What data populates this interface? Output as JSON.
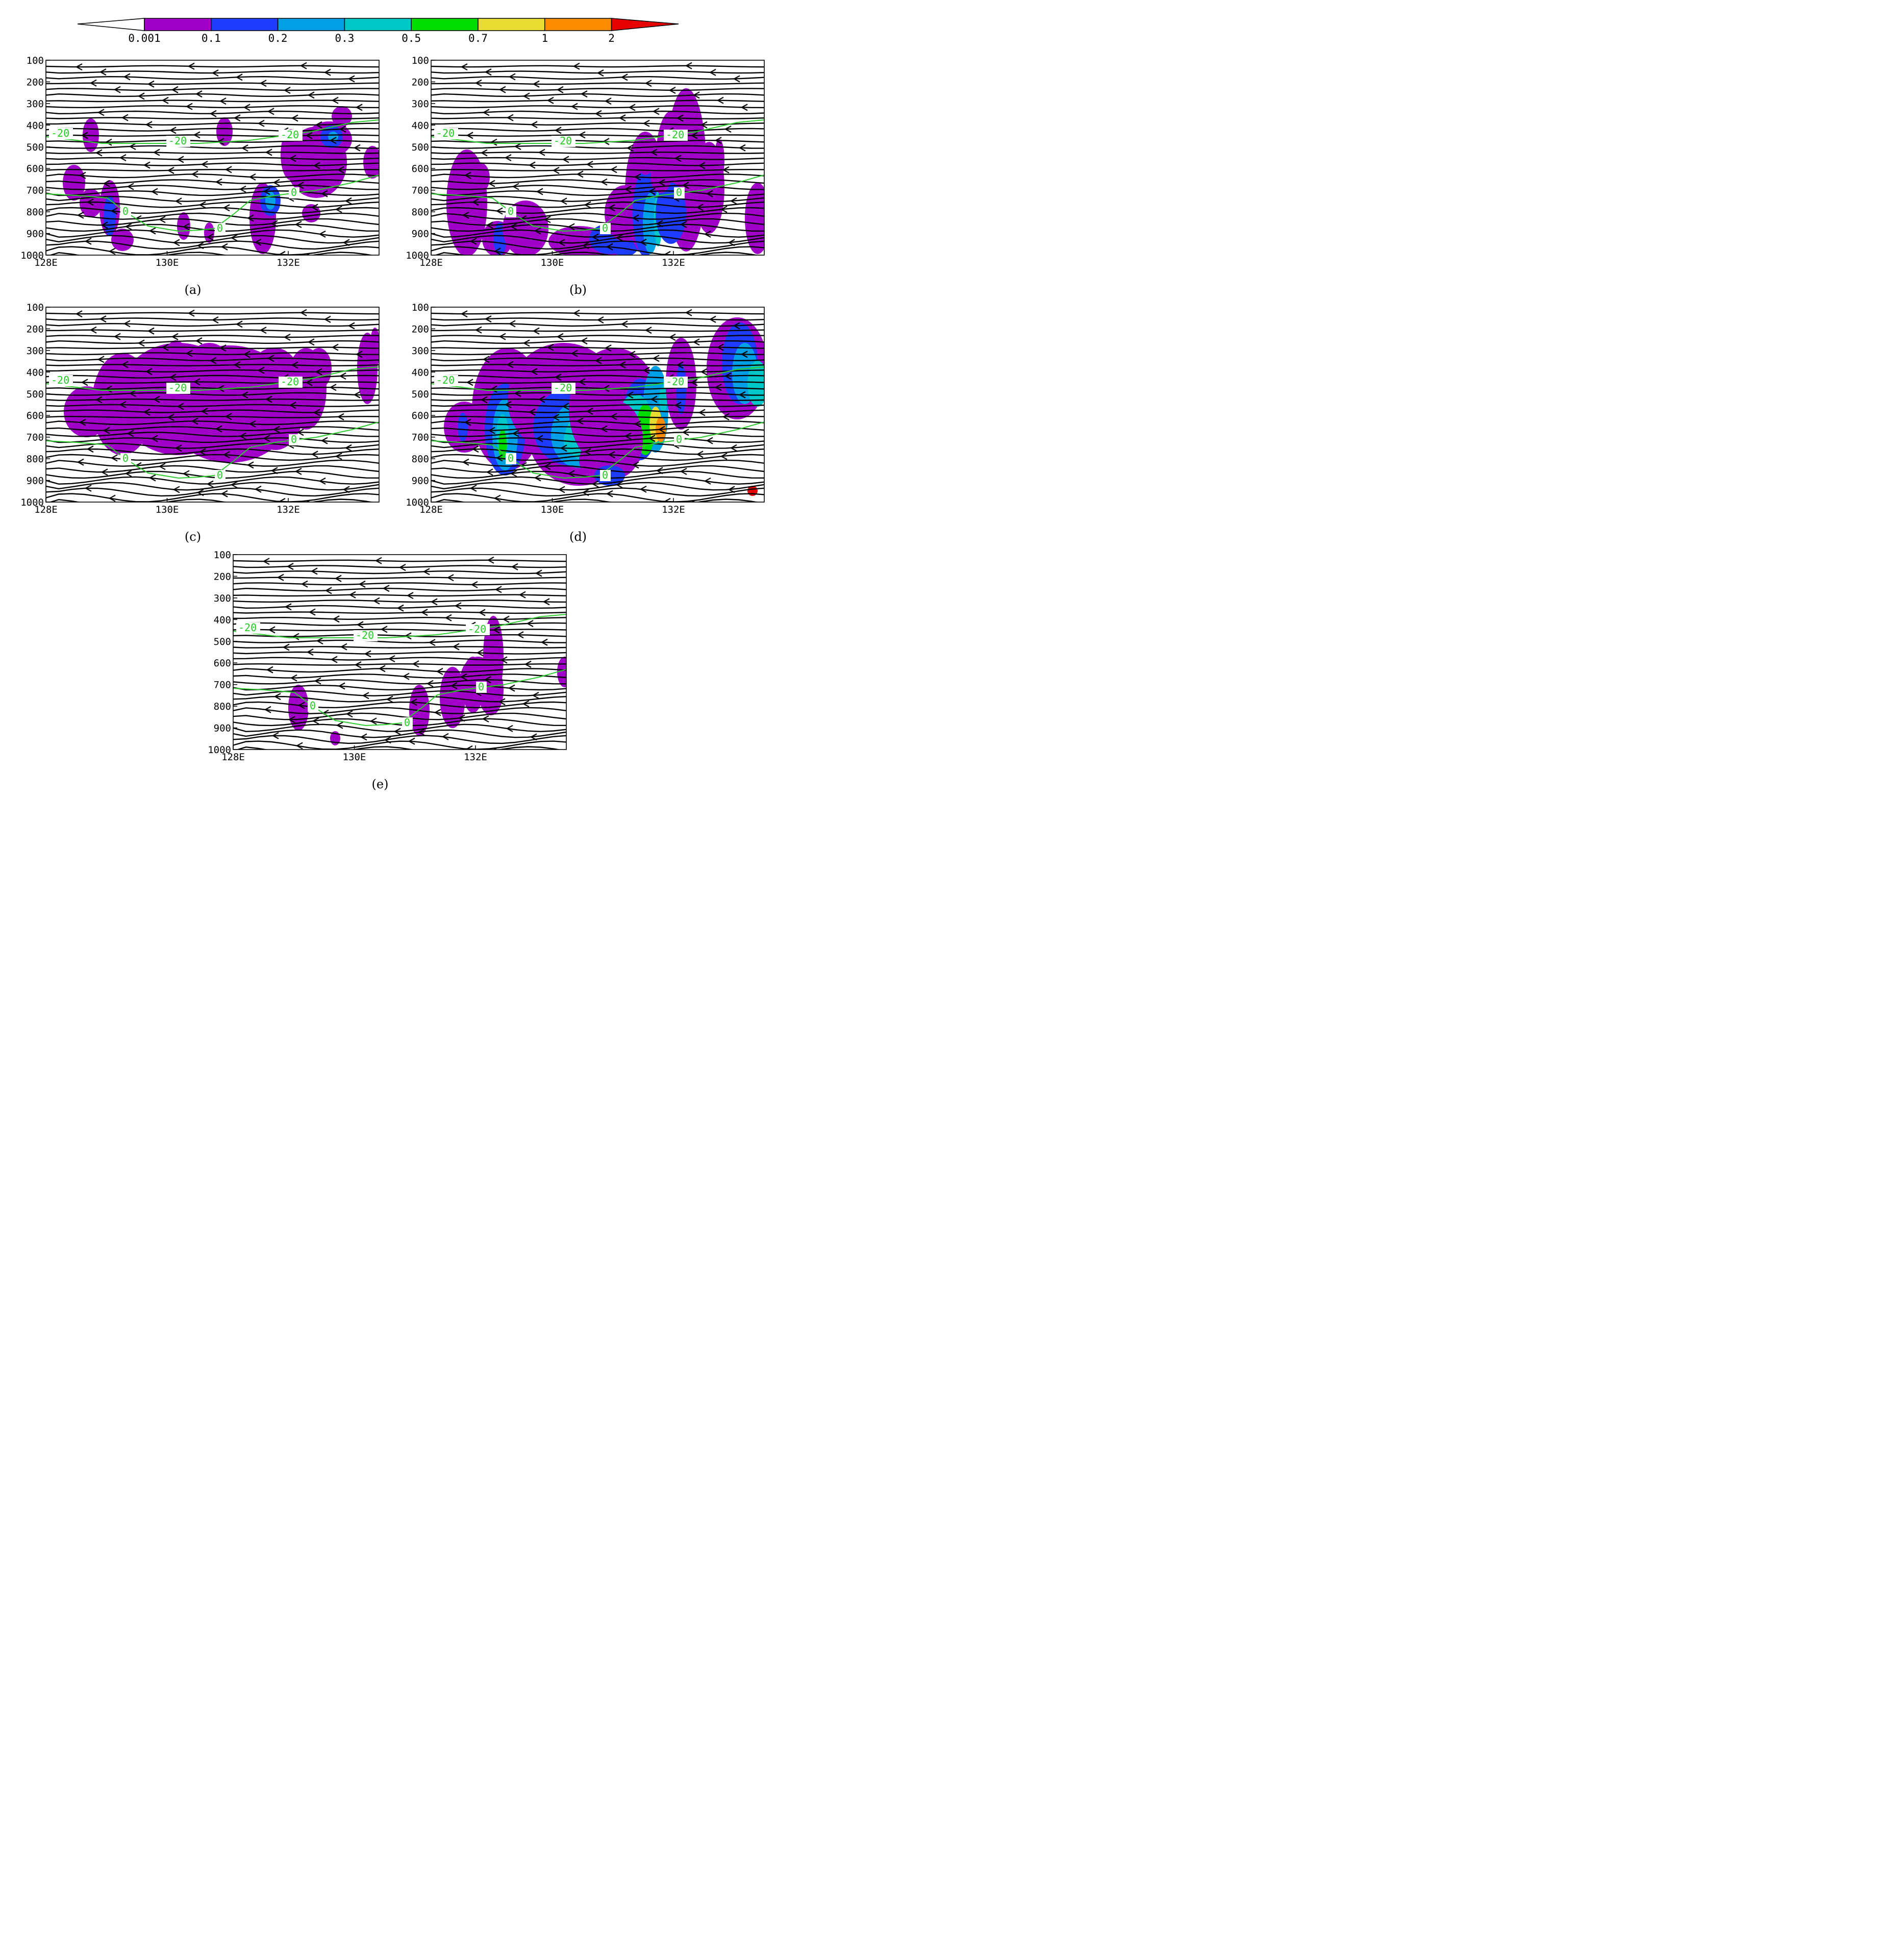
{
  "colorbar": {
    "labels": [
      "0.001",
      "0.1",
      "0.2",
      "0.3",
      "0.5",
      "0.7",
      "1",
      "2"
    ],
    "colors": [
      "#ffffff",
      "#a000c8",
      "#1e3cff",
      "#00a0e6",
      "#00c8c8",
      "#00dc00",
      "#e6dc32",
      "#ff8c00",
      "#e60000"
    ]
  },
  "chart_data": [
    {
      "type": "contour-streamline",
      "panel_label": "(a)",
      "x_ticks": [
        "128E",
        "130E",
        "132E"
      ],
      "y_ticks": [
        "100",
        "200",
        "300",
        "400",
        "500",
        "600",
        "700",
        "800",
        "900",
        "1000"
      ],
      "isotherm_labels": [
        "-20",
        "-20",
        "-20",
        "0",
        "0",
        "0"
      ],
      "max_shading_level": "0.2"
    },
    {
      "type": "contour-streamline",
      "panel_label": "(b)",
      "x_ticks": [
        "128E",
        "130E",
        "132E"
      ],
      "y_ticks": [
        "100",
        "200",
        "300",
        "400",
        "500",
        "600",
        "700",
        "800",
        "900",
        "1000"
      ],
      "isotherm_labels": [
        "-20",
        "-20",
        "-20",
        "0",
        "0",
        "0"
      ],
      "max_shading_level": "0.3"
    },
    {
      "type": "contour-streamline",
      "panel_label": "(c)",
      "x_ticks": [
        "128E",
        "130E",
        "132E"
      ],
      "y_ticks": [
        "100",
        "200",
        "300",
        "400",
        "500",
        "600",
        "700",
        "800",
        "900",
        "1000"
      ],
      "isotherm_labels": [
        "-20",
        "-20",
        "-20",
        "0",
        "0",
        "0"
      ],
      "max_shading_level": "0.1"
    },
    {
      "type": "contour-streamline",
      "panel_label": "(d)",
      "x_ticks": [
        "128E",
        "130E",
        "132E"
      ],
      "y_ticks": [
        "100",
        "200",
        "300",
        "400",
        "500",
        "600",
        "700",
        "800",
        "900",
        "1000"
      ],
      "isotherm_labels": [
        "-20",
        "-20",
        "-20",
        "0",
        "0",
        "0"
      ],
      "max_shading_level": "0.7"
    },
    {
      "type": "contour-streamline",
      "panel_label": "(e)",
      "x_ticks": [
        "128E",
        "130E",
        "132E"
      ],
      "y_ticks": [
        "100",
        "200",
        "300",
        "400",
        "500",
        "600",
        "700",
        "800",
        "900",
        "1000"
      ],
      "isotherm_labels": [
        "-20",
        "-20",
        "-20",
        "0",
        "0",
        "0"
      ],
      "max_shading_level": "0.1"
    }
  ]
}
